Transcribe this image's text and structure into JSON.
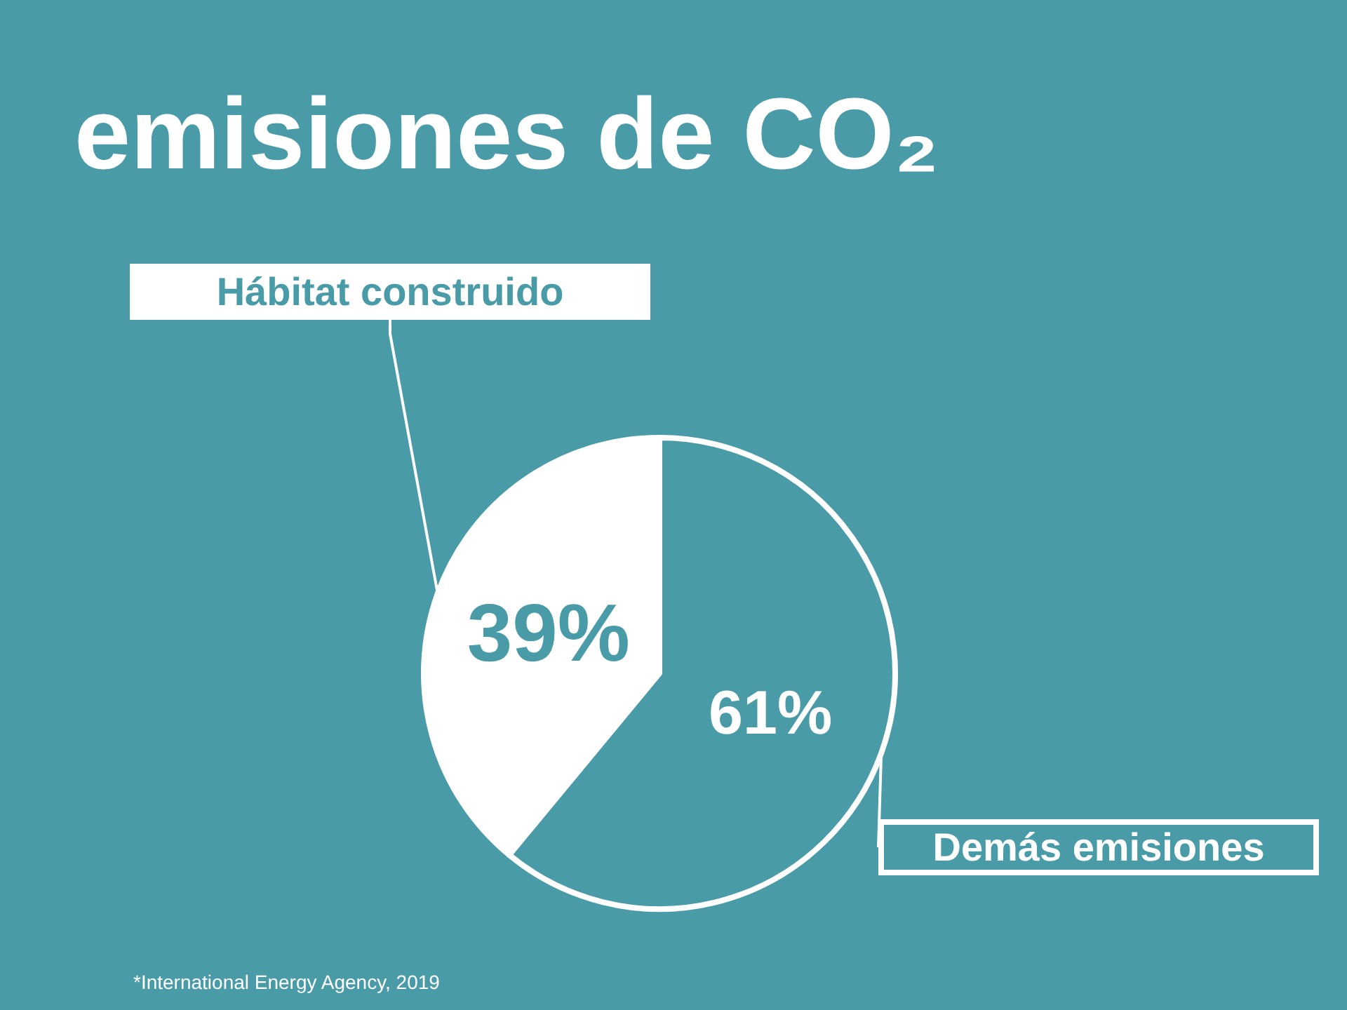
{
  "chart_data": {
    "type": "pie",
    "title": "emisiones de CO₂",
    "categories": [
      "Hábitat construido",
      "Demás emisiones"
    ],
    "values": [
      39,
      61
    ],
    "colors": [
      "#ffffff",
      "#4a9ba8"
    ],
    "value_labels": [
      "39%",
      "61%"
    ],
    "annotations": [
      "*International Energy Agency, 2019"
    ]
  }
}
